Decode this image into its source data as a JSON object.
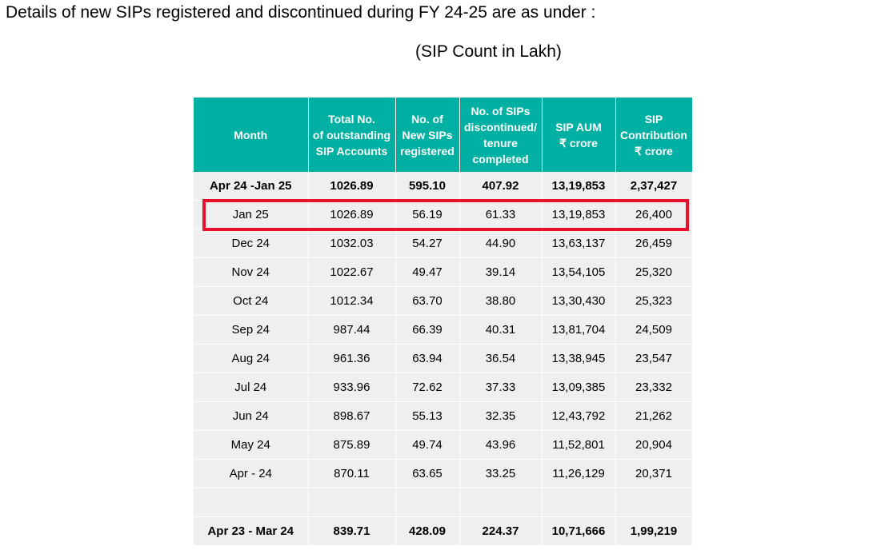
{
  "heading": "Details of new SIPs registered and discontinued during FY 24-25 are as under :",
  "subheading": "(SIP Count in Lakh)",
  "table": {
    "headers": [
      [
        "Month"
      ],
      [
        "Total No.",
        "of outstanding",
        "SIP Accounts"
      ],
      [
        "No. of",
        "New SIPs",
        "registered"
      ],
      [
        "No. of SIPs",
        "discontinued/",
        "tenure",
        "completed"
      ],
      [
        "SIP AUM",
        "₹ crore"
      ],
      [
        "SIP",
        "Contribution",
        "₹ crore"
      ]
    ],
    "rows": [
      [
        "Apr 24 -Jan 25",
        "1026.89",
        "595.10",
        "407.92",
        "13,19,853",
        "2,37,427"
      ],
      [
        "Jan 25",
        "1026.89",
        "56.19",
        "61.33",
        "13,19,853",
        "26,400"
      ],
      [
        "Dec 24",
        "1032.03",
        "54.27",
        "44.90",
        "13,63,137",
        "26,459"
      ],
      [
        "Nov 24",
        "1022.67",
        "49.47",
        "39.14",
        "13,54,105",
        "25,320"
      ],
      [
        "Oct 24",
        "1012.34",
        "63.70",
        "38.80",
        "13,30,430",
        "25,323"
      ],
      [
        "Sep 24",
        "987.44",
        "66.39",
        "40.31",
        "13,81,704",
        "24,509"
      ],
      [
        "Aug 24",
        "961.36",
        "63.94",
        "36.54",
        "13,38,945",
        "23,547"
      ],
      [
        "Jul 24",
        "933.96",
        "72.62",
        "37.33",
        "13,09,385",
        "23,332"
      ],
      [
        "Jun 24",
        "898.67",
        "55.13",
        "32.35",
        "12,43,792",
        "21,262"
      ],
      [
        "May 24",
        "875.89",
        "49.74",
        "43.96",
        "11,52,801",
        "20,904"
      ],
      [
        "Apr - 24",
        "870.11",
        "63.65",
        "33.25",
        "11,26,129",
        "20,371"
      ],
      [
        "",
        "",
        "",
        "",
        "",
        ""
      ],
      [
        "Apr 23 - Mar 24",
        "839.71",
        "428.09",
        "224.37",
        "10,71,666",
        "1,99,219"
      ]
    ],
    "bold_rows": [
      0,
      12
    ],
    "highlighted_row": 1
  },
  "colors": {
    "header_bg": "#00b0a3",
    "row_bg": "#efefef",
    "highlight_border": "#e8102a"
  }
}
